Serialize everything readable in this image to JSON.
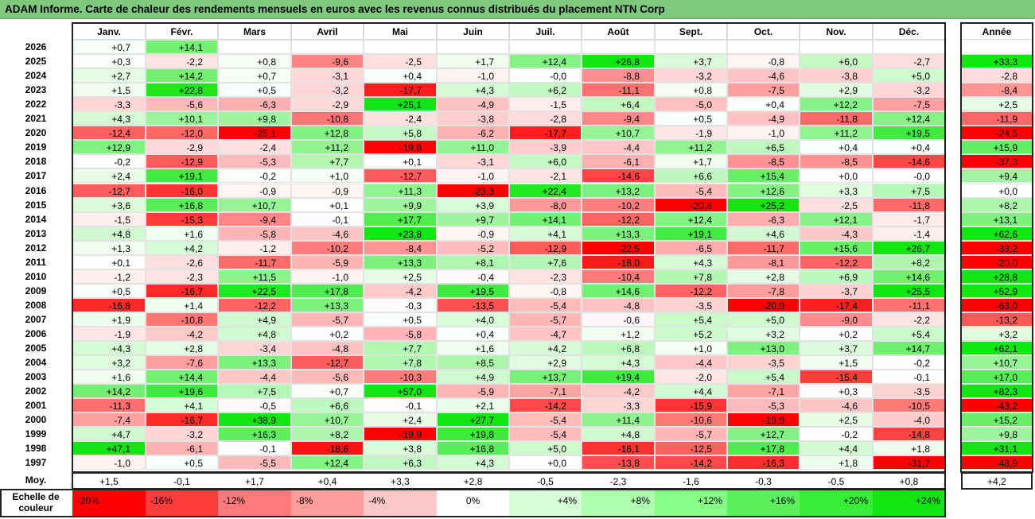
{
  "title": "ADAM Informe. Carte de chaleur des rendements mensuels en euros avec les revenus connus distribués du placement NTN Corp",
  "chart_data": {
    "type": "heatmap",
    "columns": [
      "Janv.",
      "Févr.",
      "Mars",
      "Avril",
      "Mai",
      "Juin",
      "Juil.",
      "Août",
      "Sept.",
      "Oct.",
      "Nov.",
      "Déc."
    ],
    "year_label": "Année",
    "rows": [
      {
        "year": "2026",
        "values": [
          "+0,7",
          "+14,1",
          null,
          null,
          null,
          null,
          null,
          null,
          null,
          null,
          null,
          null
        ],
        "annual": null
      },
      {
        "year": "2025",
        "values": [
          "+0,3",
          "-2,2",
          "+0,8",
          "-9,6",
          "-2,5",
          "+1,7",
          "+12,4",
          "+26,8",
          "+3,7",
          "-0,8",
          "+6,0",
          "-2,7"
        ],
        "annual": "+33,3"
      },
      {
        "year": "2024",
        "values": [
          "+2,7",
          "+14,2",
          "+0,7",
          "-3,1",
          "+0,4",
          "-1,0",
          "-0,0",
          "-8,8",
          "-3,2",
          "-4,6",
          "-3,8",
          "+5,0"
        ],
        "annual": "-2,8"
      },
      {
        "year": "2023",
        "values": [
          "+1,5",
          "+22,8",
          "+0,5",
          "-3,2",
          "-17,7",
          "+4,3",
          "+6,2",
          "-11,1",
          "+0,8",
          "-7,5",
          "+2,9",
          "-3,2"
        ],
        "annual": "-8,4"
      },
      {
        "year": "2022",
        "values": [
          "-3,3",
          "-5,6",
          "-6,3",
          "-2,9",
          "+25,1",
          "-4,9",
          "-1,5",
          "+6,4",
          "-5,0",
          "+0,4",
          "+12,2",
          "-7,5"
        ],
        "annual": "+2,5"
      },
      {
        "year": "2021",
        "values": [
          "+4,3",
          "+10,1",
          "+9,8",
          "-10,8",
          "-2,4",
          "-3,8",
          "-2,8",
          "-9,4",
          "+0,5",
          "-4,9",
          "-11,8",
          "+12,4"
        ],
        "annual": "-11,9"
      },
      {
        "year": "2020",
        "values": [
          "-12,4",
          "-12,0",
          "-25,1",
          "+12,8",
          "+5,8",
          "-6,2",
          "-17,7",
          "+10,7",
          "-1,9",
          "-1,0",
          "+11,2",
          "+19,5"
        ],
        "annual": "-24,5"
      },
      {
        "year": "2019",
        "values": [
          "+12,9",
          "-2,9",
          "-2,4",
          "+11,2",
          "-19,8",
          "+11,0",
          "-3,9",
          "-4,4",
          "+11,2",
          "+6,5",
          "+0,4",
          "+0,4"
        ],
        "annual": "+15,9"
      },
      {
        "year": "2018",
        "values": [
          "-0,2",
          "-12,9",
          "-5,3",
          "+7,7",
          "+0,1",
          "-3,1",
          "+6,0",
          "-6,1",
          "+1,7",
          "-8,5",
          "-8,5",
          "-14,6"
        ],
        "annual": "-37,3"
      },
      {
        "year": "2017",
        "values": [
          "+2,4",
          "+19,1",
          "-0,2",
          "+1,0",
          "-12,7",
          "-1,0",
          "-2,1",
          "-14,6",
          "+6,6",
          "+15,4",
          "+0,0",
          "-0,0"
        ],
        "annual": "+9,4"
      },
      {
        "year": "2016",
        "values": [
          "-12,7",
          "-16,0",
          "-0,9",
          "-0,9",
          "+11,3",
          "-23,3",
          "+22,4",
          "+13,2",
          "-5,4",
          "+12,6",
          "+3,3",
          "+7,5"
        ],
        "annual": "+0,0"
      },
      {
        "year": "2015",
        "values": [
          "+3,6",
          "+16,8",
          "+10,7",
          "+0,1",
          "+9,9",
          "+3,9",
          "-8,0",
          "-10,2",
          "-20,8",
          "+25,2",
          "-2,5",
          "-11,8"
        ],
        "annual": "+8,2"
      },
      {
        "year": "2014",
        "values": [
          "-1,5",
          "-15,3",
          "-9,4",
          "-0,1",
          "+17,7",
          "+9,7",
          "+14,1",
          "-12,2",
          "+12,4",
          "-6,3",
          "+12,1",
          "-1,7"
        ],
        "annual": "+13,1"
      },
      {
        "year": "2013",
        "values": [
          "+4,8",
          "+1,6",
          "-5,8",
          "-4,6",
          "+23,8",
          "-0,9",
          "+4,1",
          "+13,3",
          "+19,1",
          "+4,6",
          "-4,3",
          "-1,4"
        ],
        "annual": "+62,6"
      },
      {
        "year": "2012",
        "values": [
          "+1,3",
          "+4,2",
          "-1,2",
          "-10,2",
          "-8,4",
          "-5,2",
          "-12,9",
          "-22,5",
          "-6,5",
          "-11,7",
          "+15,6",
          "+26,7"
        ],
        "annual": "-33,2"
      },
      {
        "year": "2011",
        "values": [
          "+0,1",
          "-2,6",
          "-11,7",
          "-5,9",
          "+13,3",
          "+8,1",
          "+7,6",
          "-18,0",
          "+4,3",
          "-8,1",
          "-12,2",
          "+8,2"
        ],
        "annual": "-20,0"
      },
      {
        "year": "2010",
        "values": [
          "-1,2",
          "-2,3",
          "+11,5",
          "-1,0",
          "+2,5",
          "-0,4",
          "-2,3",
          "-10,4",
          "+7,8",
          "+2,8",
          "+6,9",
          "+14,6"
        ],
        "annual": "+28,8"
      },
      {
        "year": "2009",
        "values": [
          "+0,5",
          "-16,7",
          "+22,5",
          "+17,8",
          "-4,2",
          "+19,5",
          "-0,8",
          "+14,6",
          "-12,2",
          "-7,8",
          "-3,7",
          "+25,5"
        ],
        "annual": "+52,9"
      },
      {
        "year": "2008",
        "values": [
          "-16,8",
          "+1,4",
          "-12,2",
          "+13,3",
          "-0,3",
          "-13,5",
          "-5,4",
          "-4,8",
          "-3,5",
          "-20,9",
          "-17,4",
          "-11,1"
        ],
        "annual": "-63,0"
      },
      {
        "year": "2007",
        "values": [
          "+1,9",
          "-10,8",
          "+4,9",
          "-5,7",
          "+0,5",
          "+4,0",
          "-5,7",
          "-0,6",
          "+5,4",
          "+5,0",
          "-9,0",
          "-2,2"
        ],
        "annual": "-13,2"
      },
      {
        "year": "2006",
        "values": [
          "-1,9",
          "-4,2",
          "+4,8",
          "+0,2",
          "-5,8",
          "+0,4",
          "-4,7",
          "+1,2",
          "+5,2",
          "+3,2",
          "+0,2",
          "+5,4"
        ],
        "annual": "+3,2"
      },
      {
        "year": "2005",
        "values": [
          "+4,3",
          "+2,8",
          "-3,4",
          "-4,8",
          "+7,7",
          "+1,6",
          "+4,2",
          "+6,8",
          "+1,0",
          "+13,0",
          "+3,7",
          "+14,7"
        ],
        "annual": "+62,1"
      },
      {
        "year": "2004",
        "values": [
          "+3,2",
          "-7,6",
          "+13,3",
          "-12,7",
          "+7,8",
          "+8,5",
          "+2,9",
          "+4,3",
          "-4,4",
          "-3,5",
          "+1,5",
          "-0,2"
        ],
        "annual": "+10,7"
      },
      {
        "year": "2003",
        "values": [
          "+1,6",
          "+14,4",
          "-4,4",
          "-5,6",
          "-10,3",
          "+4,9",
          "+13,7",
          "+19,4",
          "-2,0",
          "+5,4",
          "-15,4",
          "-0,1"
        ],
        "annual": "+17,0"
      },
      {
        "year": "2002",
        "values": [
          "+14,2",
          "+19,6",
          "+7,5",
          "+0,7",
          "+57,0",
          "-5,9",
          "-7,1",
          "-4,2",
          "+4,4",
          "-7,1",
          "+0,3",
          "-3,5"
        ],
        "annual": "+82,3"
      },
      {
        "year": "2001",
        "values": [
          "-11,3",
          "+4,1",
          "-0,5",
          "+6,6",
          "-0,1",
          "+2,1",
          "-14,2",
          "-3,3",
          "-15,9",
          "-5,3",
          "-4,6",
          "-10,5"
        ],
        "annual": "-43,2"
      },
      {
        "year": "2000",
        "values": [
          "-7,4",
          "-16,7",
          "+38,9",
          "+10,7",
          "+2,4",
          "+27,7",
          "-5,4",
          "+11,4",
          "-10,6",
          "-19,9",
          "+2,5",
          "-4,0"
        ],
        "annual": "+15,2"
      },
      {
        "year": "1999",
        "values": [
          "+4,7",
          "-3,2",
          "+16,3",
          "+8,2",
          "-19,9",
          "+19,8",
          "-5,4",
          "+4,8",
          "-5,7",
          "+12,7",
          "-0,2",
          "-14,8"
        ],
        "annual": "+9,8"
      },
      {
        "year": "1998",
        "values": [
          "+47,1",
          "-6,1",
          "-0,1",
          "-18,6",
          "+3,8",
          "+16,8",
          "+5,0",
          "-16,1",
          "-12,5",
          "+17,8",
          "+4,4",
          "+1,8"
        ],
        "annual": "+31,1"
      },
      {
        "year": "1997",
        "values": [
          "-1,0",
          "+0,5",
          "-5,5",
          "+12,4",
          "+6,3",
          "+4,3",
          "+0,0",
          "-13,8",
          "-14,2",
          "-16,3",
          "+1,8",
          "-31,7"
        ],
        "annual": "-48,9"
      }
    ],
    "average": {
      "label": "Moy.",
      "values": [
        "+1,5",
        "-0,1",
        "+1,7",
        "+0,4",
        "+3,3",
        "+2,8",
        "-0,5",
        "-2,3",
        "-1,6",
        "-0,3",
        "-0,5",
        "+0,8"
      ],
      "annual": "+4,2"
    },
    "legend": {
      "label": "Echelle de couleur",
      "items": [
        {
          "text": "-20%",
          "color": "#ff0000"
        },
        {
          "text": "-16%",
          "color": "#ff3c3c"
        },
        {
          "text": "-12%",
          "color": "#ff7a7a"
        },
        {
          "text": "-8%",
          "color": "#ff9c9c"
        },
        {
          "text": "-4%",
          "color": "#ffc8c8"
        },
        {
          "text": "0%",
          "color": "#ffffff"
        },
        {
          "text": "+4%",
          "color": "#d8ffd8"
        },
        {
          "text": "+8%",
          "color": "#b0ffb0"
        },
        {
          "text": "+12%",
          "color": "#86ff86"
        },
        {
          "text": "+16%",
          "color": "#5cf05c"
        },
        {
          "text": "+20%",
          "color": "#38ec38"
        },
        {
          "text": "+24%",
          "color": "#12e612"
        }
      ]
    },
    "color_scale": {
      "min": -20,
      "max": 24,
      "negative": "#ff0000",
      "neutral": "#ffffff",
      "positive": "#12e612"
    }
  }
}
